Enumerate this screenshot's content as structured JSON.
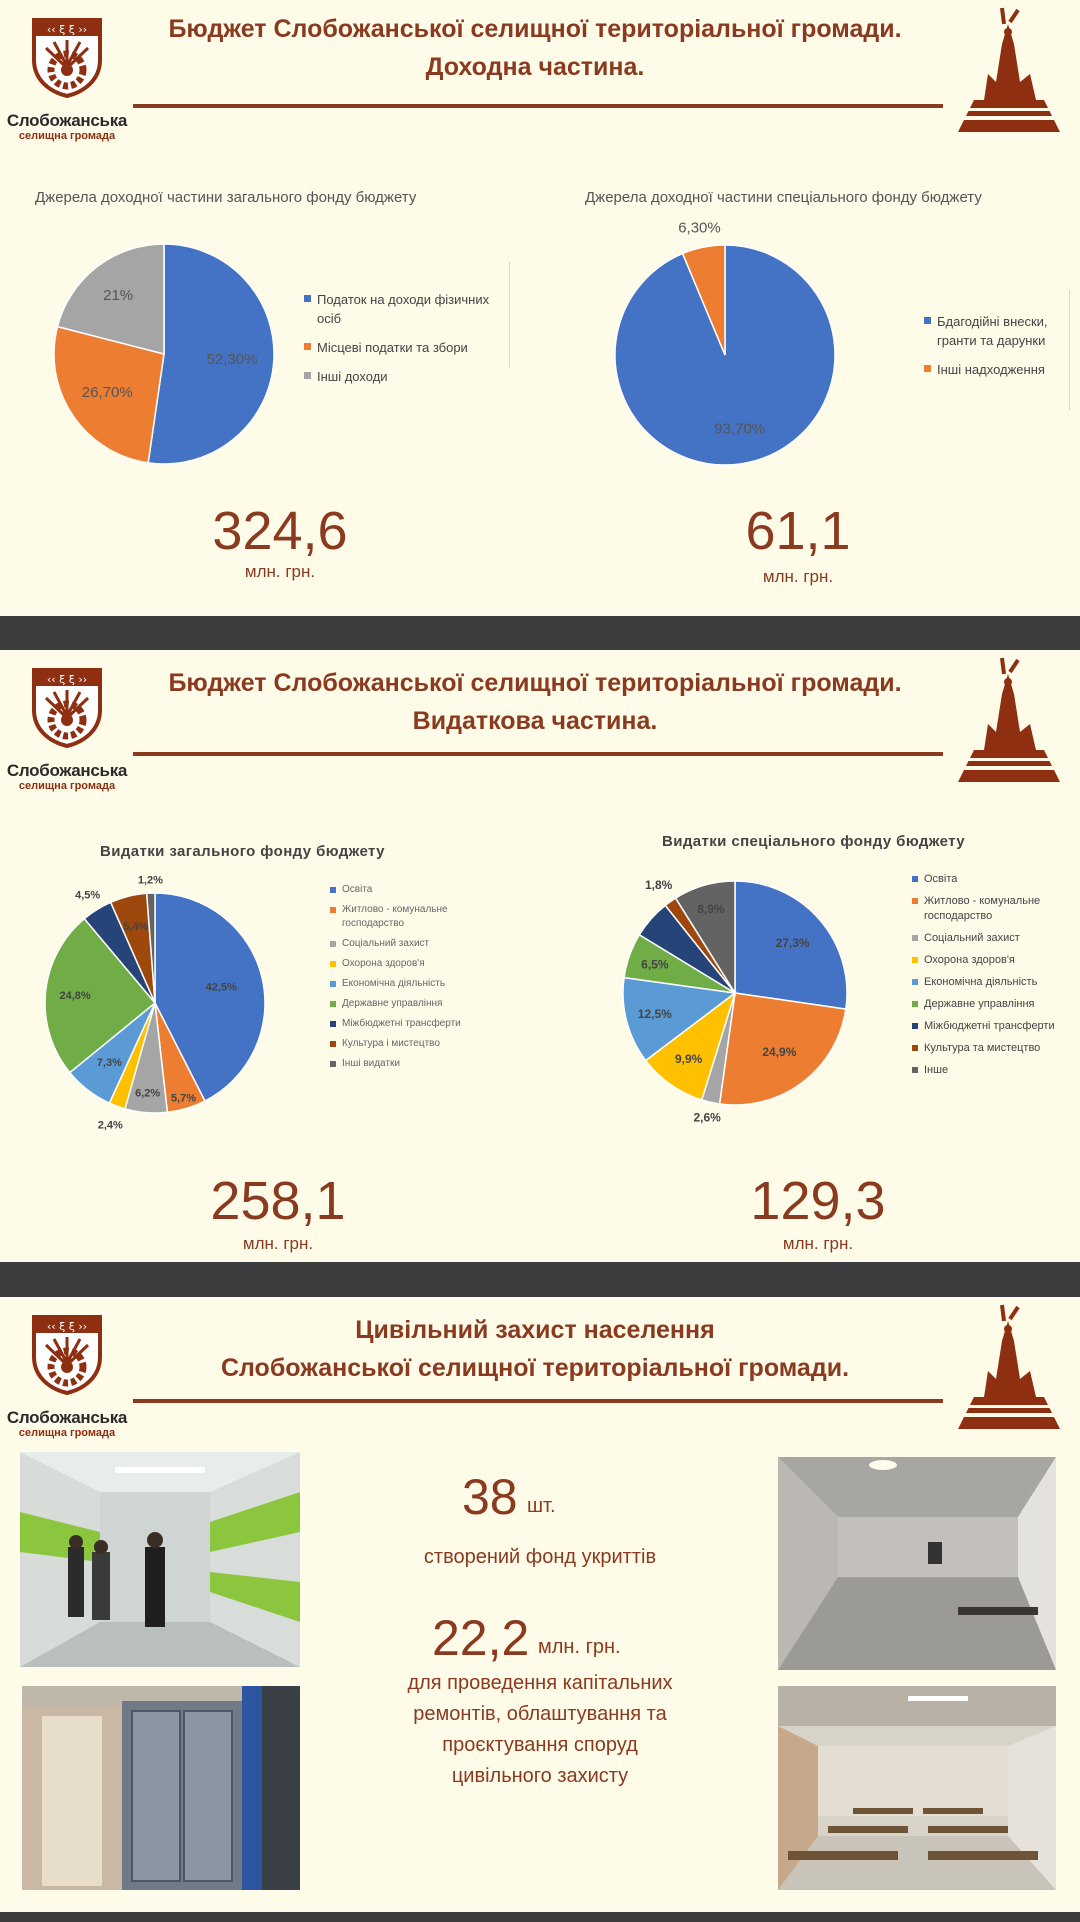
{
  "logo": {
    "name": "Слобожанська",
    "sub": "селищна громада"
  },
  "slide1": {
    "title_line1": "Бюджет Слобожанської селищної територіальної громади.",
    "title_line2": "Доходна частина.",
    "left_total": "324,6",
    "left_unit": "млн. грн.",
    "right_total": "61,1",
    "right_unit": "млн. грн."
  },
  "slide2": {
    "title_line1": "Бюджет Слобожанської селищної територіальної громади.",
    "title_line2": "Видаткова частина.",
    "left_total": "258,1",
    "left_unit": "млн. грн.",
    "right_total": "129,3",
    "right_unit": "млн. грн."
  },
  "slide3": {
    "title_line1": "Цивільний захист населення",
    "title_line2": "Слобожанської селищної територіальної громади.",
    "stat1_value": "38",
    "stat1_unit": "шт.",
    "stat1_text": "створений фонд укриттів",
    "stat2_value": "22,2",
    "stat2_unit": "млн. грн.",
    "stat2_text_line1": "для проведення капітальних",
    "stat2_text_line2": "ремонтів, облаштування та",
    "stat2_text_line3": "проєктування споруд",
    "stat2_text_line4": "цивільного захисту"
  },
  "chart_data": [
    {
      "type": "pie",
      "title": "Джерела доходної частини загального фонду бюджету",
      "categories": [
        "Податок на доходи фізичних осіб",
        "Місцеві податки та збори",
        "Інші доходи"
      ],
      "values": [
        52.3,
        26.7,
        21.0
      ],
      "labels": [
        "52,30%",
        "26,70%",
        "21%"
      ],
      "colors": [
        "#4472c4",
        "#ed7d31",
        "#a5a5a5"
      ],
      "legend_position": "right"
    },
    {
      "type": "pie",
      "title": "Джерела доходної частини спеціального фонду бюджету",
      "categories": [
        "Бдагодійні внески, гранти та дарунки",
        "Інші надходження"
      ],
      "values": [
        93.7,
        6.3
      ],
      "labels": [
        "93,70%",
        "6,30%"
      ],
      "colors": [
        "#4472c4",
        "#ed7d31"
      ],
      "legend_position": "right"
    },
    {
      "type": "pie",
      "title": "Видатки загального фонду бюджету",
      "categories": [
        "Освіта",
        "Житлово - комунальне господарство",
        "Соціальний захист",
        "Охорона здоров'я",
        "Економічна діяльність",
        "Державне управління",
        "Міжбюджетні трансферти",
        "Культура і мистецтво",
        "Інші видатки"
      ],
      "values": [
        42.5,
        5.7,
        6.2,
        2.4,
        7.3,
        24.8,
        4.5,
        5.4,
        1.2
      ],
      "labels": [
        "42,5%",
        "5,7%",
        "6,2%",
        "2,4%",
        "7,3%",
        "24,8%",
        "4,5%",
        "5,4%",
        "1,2%"
      ],
      "colors": [
        "#4472c4",
        "#ed7d31",
        "#a5a5a5",
        "#ffc000",
        "#5b9bd5",
        "#70ad47",
        "#264478",
        "#9e480e",
        "#636363"
      ],
      "legend_position": "right"
    },
    {
      "type": "pie",
      "title": "Видатки спеціального фонду бюджету",
      "categories": [
        "Освіта",
        "Житлово - комунальне господарство",
        "Соціальний захист",
        "Охорона здоров'я",
        "Економічна діяльність",
        "Державне управління",
        "Міжбюджетні трансферти",
        "Культура та мистецтво",
        "Інше"
      ],
      "values": [
        27.3,
        24.9,
        2.6,
        9.9,
        12.5,
        6.5,
        5.6,
        1.8,
        8.9
      ],
      "labels": [
        "27,3%",
        "24,9%",
        "2,6%",
        "9,9%",
        "12,5%",
        "6,5%",
        "",
        "1,8%",
        "8,9%"
      ],
      "colors": [
        "#4472c4",
        "#ed7d31",
        "#a5a5a5",
        "#ffc000",
        "#5b9bd5",
        "#70ad47",
        "#264478",
        "#9e480e",
        "#636363"
      ],
      "legend_position": "right"
    }
  ]
}
